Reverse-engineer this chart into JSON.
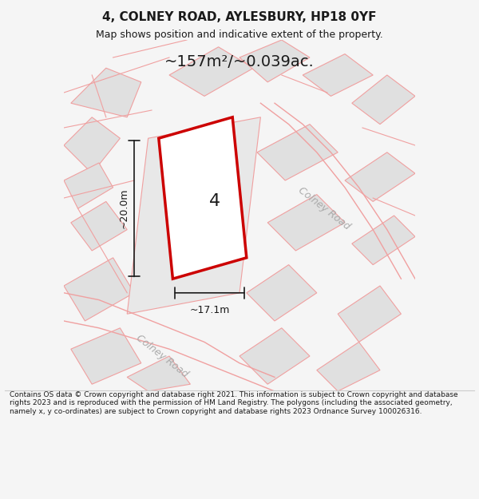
{
  "title_line1": "4, COLNEY ROAD, AYLESBURY, HP18 0YF",
  "title_line2": "Map shows position and indicative extent of the property.",
  "area_text": "~157m²/~0.039ac.",
  "label_number": "4",
  "dim_width": "~17.1m",
  "dim_height": "~20.0m",
  "road_label_1": "Colney Road",
  "road_label_2": "Colney Road",
  "footer_text": "Contains OS data © Crown copyright and database right 2021. This information is subject to Crown copyright and database rights 2023 and is reproduced with the permission of HM Land Registry. The polygons (including the associated geometry, namely x, y co-ordinates) are subject to Crown copyright and database rights 2023 Ordnance Survey 100026316.",
  "bg_color": "#f5f5f5",
  "map_bg": "#f0f0f0",
  "plot_fill": "#ffffff",
  "plot_edge": "#cc0000",
  "road_fill": "#ffffff",
  "road_edge": "#f0a0a0",
  "building_fill": "#e0e0e0",
  "building_edge": "#f0a0a0",
  "dim_color": "#1a1a1a",
  "text_color": "#1a1a1a"
}
